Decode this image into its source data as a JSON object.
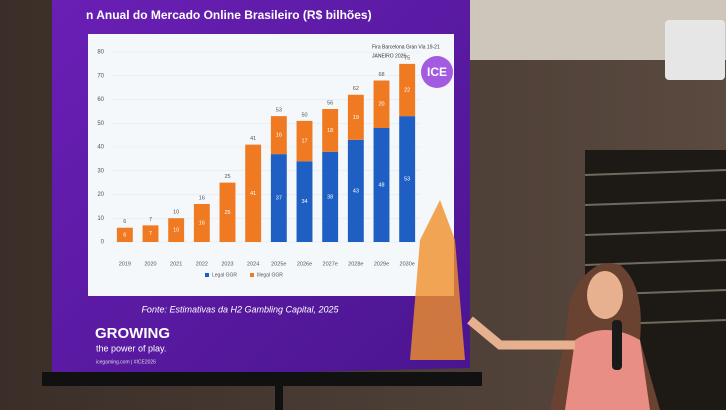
{
  "chart_data": {
    "type": "stacked-bar",
    "title": "n Anual do Mercado Online Brasileiro (R$ bilhões)",
    "categories": [
      "2019",
      "2020",
      "2021",
      "2022",
      "2023",
      "2024",
      "2025e",
      "2026e",
      "2027e",
      "2028e",
      "2029e",
      "2030e"
    ],
    "series": [
      {
        "name": "Legal GGR",
        "color": "#1f5fc4",
        "values": [
          null,
          null,
          null,
          null,
          null,
          null,
          37,
          34,
          38,
          43,
          48,
          53
        ]
      },
      {
        "name": "Illegal GGR",
        "color": "#f07a22",
        "values": [
          6,
          7,
          10,
          16,
          25,
          41,
          16,
          17,
          18,
          19,
          20,
          22
        ]
      }
    ],
    "totals": [
      6,
      7,
      10,
      16,
      25,
      41,
      53,
      50,
      56,
      62,
      68,
      75
    ],
    "ylim": [
      0,
      80
    ],
    "yticks": [
      0,
      10,
      20,
      30,
      40,
      50,
      60,
      70,
      80
    ],
    "grid": true,
    "source": "Fonte: Estimativas da H2 Gambling Capital, 2025"
  },
  "slide": {
    "event": "Fira Barcelona Gran Via 19-21",
    "date": "JANEIRO 2026",
    "badge": "ICE",
    "brand": "GROWING",
    "tagline": "the power of play.",
    "footer": "icegaming.com | #ICE2026"
  }
}
